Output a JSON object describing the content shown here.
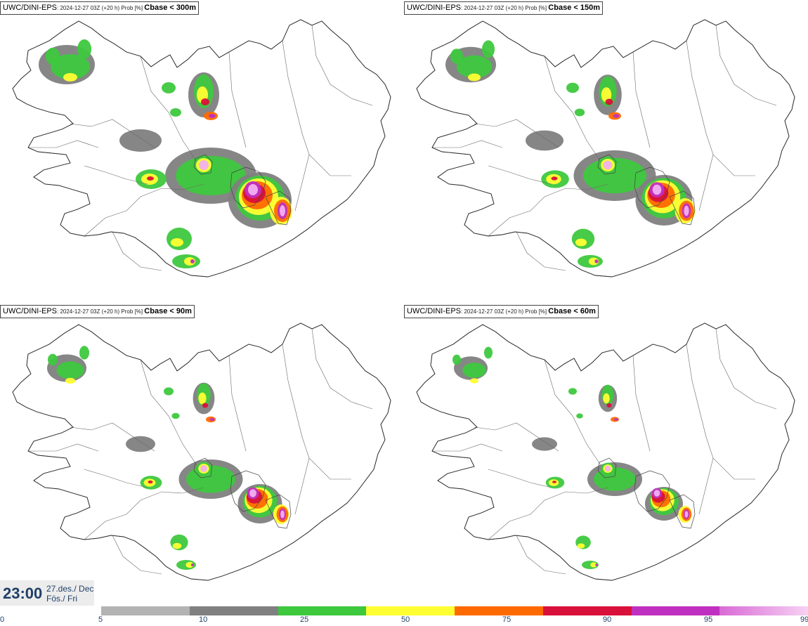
{
  "panels": [
    {
      "model": "UWC/DINI-EPS",
      "meta": ": 2024-12-27 03Z (+20 h) Prob [%] ",
      "threshold": "Cbase < 300m"
    },
    {
      "model": "UWC/DINI-EPS",
      "meta": ": 2024-12-27 03Z (+20 h) Prob [%] ",
      "threshold": "Cbase < 150m"
    },
    {
      "model": "UWC/DINI-EPS",
      "meta": ": 2024-12-27 03Z (+20 h) Prob [%] ",
      "threshold": "Cbase < 90m"
    },
    {
      "model": "UWC/DINI-EPS",
      "meta": ": 2024-12-27 03Z (+20 h) Prob [%] ",
      "threshold": "Cbase < 60m"
    }
  ],
  "time": {
    "hour": "23:00",
    "date_line1": "27.des./ Dec",
    "date_line2": "Fös./ Fri"
  },
  "legend": {
    "ticks": [
      "0",
      "5",
      "10",
      "25",
      "50",
      "75",
      "90",
      "95",
      "99"
    ],
    "colors": [
      "#b3b3b3",
      "#808080",
      "#3ec83e",
      "#ffff33",
      "#ff6a00",
      "#d9103a",
      "#c030c0",
      "#f3b0f0"
    ]
  }
}
